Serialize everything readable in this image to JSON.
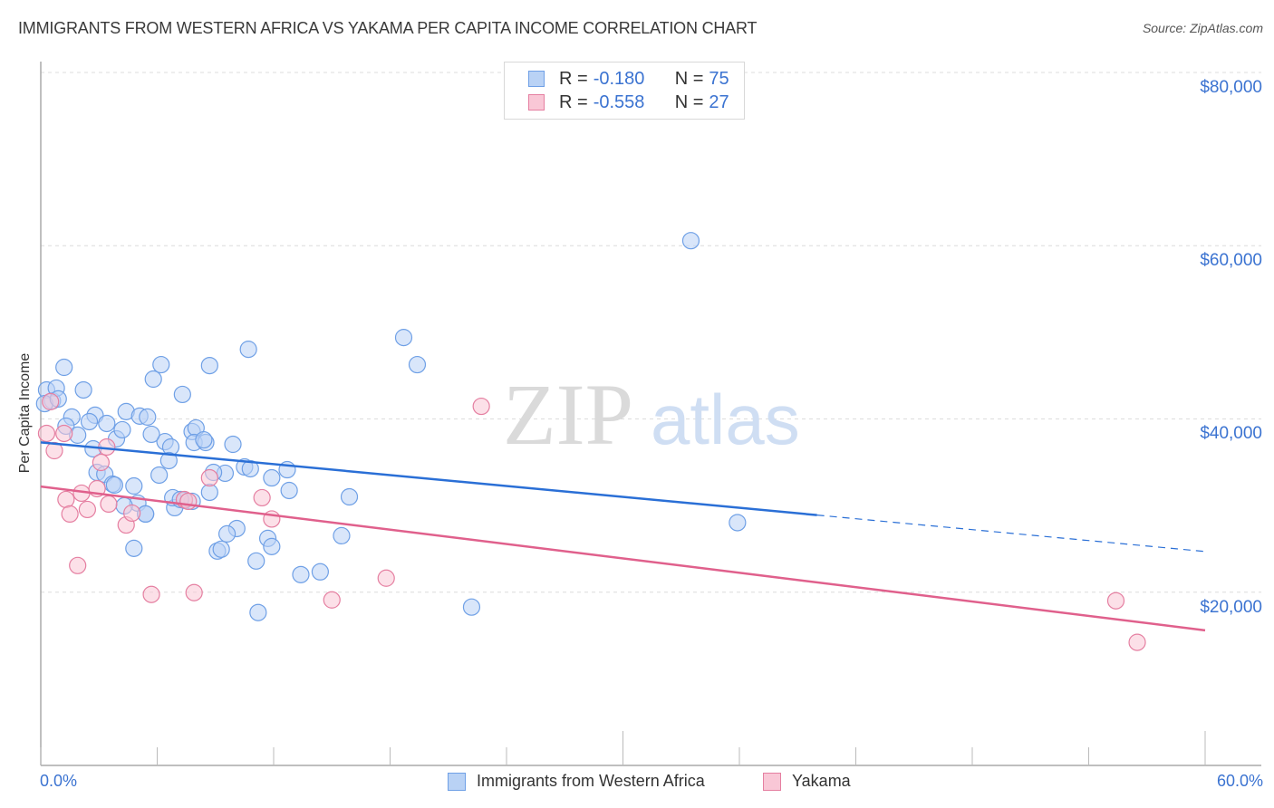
{
  "header": {
    "title": "IMMIGRANTS FROM WESTERN AFRICA VS YAKAMA PER CAPITA INCOME CORRELATION CHART",
    "source": "Source: ZipAtlas.com"
  },
  "watermark": {
    "zip": "ZIP",
    "atlas": "atlas"
  },
  "legend": {
    "series": [
      {
        "r_label": "R =",
        "r_value": "-0.180",
        "n_label": "N =",
        "n_value": "75",
        "color": "#6fa0e6",
        "fill": "#b9d2f5"
      },
      {
        "r_label": "R =",
        "r_value": "-0.558",
        "n_label": "N =",
        "n_value": "27",
        "color": "#e57fa1",
        "fill": "#f9c7d6"
      }
    ]
  },
  "bottom_legend": {
    "items": [
      {
        "label": "Immigrants from Western Africa"
      },
      {
        "label": "Yakama"
      }
    ]
  },
  "axes": {
    "y_label": "Per Capita Income",
    "y_ticks": [
      "$80,000",
      "$60,000",
      "$40,000",
      "$20,000"
    ],
    "x_min_label": "0.0%",
    "x_max_label": "60.0%"
  },
  "chart_data": {
    "type": "scatter",
    "title": "IMMIGRANTS FROM WESTERN AFRICA VS YAKAMA PER CAPITA INCOME CORRELATION CHART",
    "xlabel": "",
    "ylabel": "Per Capita Income",
    "xlim": [
      0,
      60
    ],
    "ylim": [
      0,
      80000
    ],
    "x_tick_labels": [
      "0.0%",
      "60.0%"
    ],
    "y_tick_values": [
      20000,
      40000,
      60000,
      80000
    ],
    "y_tick_labels": [
      "$20,000",
      "$40,000",
      "$60,000",
      "$80,000"
    ],
    "grid": true,
    "legend_position": "top-center and bottom",
    "series": [
      {
        "name": "Immigrants from Western Africa",
        "color": "#6fa0e6",
        "r": -0.18,
        "n": 75,
        "trend": {
          "x0": 0,
          "y0": 37300,
          "x1": 40,
          "y1": 28900,
          "dashed_to_x": 60,
          "dashed_to_y": 24700
        },
        "points": [
          [
            0.3,
            43350
          ],
          [
            0.6,
            42100
          ],
          [
            0.8,
            43560
          ],
          [
            1.2,
            45960
          ],
          [
            0.2,
            41770
          ],
          [
            0.9,
            42310
          ],
          [
            2.2,
            43350
          ],
          [
            1.6,
            40220
          ],
          [
            1.3,
            39170
          ],
          [
            2.8,
            40430
          ],
          [
            2.5,
            39690
          ],
          [
            1.9,
            38130
          ],
          [
            3.4,
            39480
          ],
          [
            2.7,
            36550
          ],
          [
            3.9,
            37700
          ],
          [
            4.2,
            38750
          ],
          [
            4.4,
            40850
          ],
          [
            5.1,
            40330
          ],
          [
            5.5,
            40220
          ],
          [
            2.9,
            33830
          ],
          [
            3.3,
            33620
          ],
          [
            3.7,
            32470
          ],
          [
            4.8,
            32260
          ],
          [
            6.1,
            33520
          ],
          [
            6.4,
            37380
          ],
          [
            6.7,
            36760
          ],
          [
            5.7,
            38230
          ],
          [
            5.8,
            44600
          ],
          [
            6.2,
            46270
          ],
          [
            7.3,
            42830
          ],
          [
            8.7,
            46160
          ],
          [
            10.7,
            48040
          ],
          [
            18.7,
            49400
          ],
          [
            19.4,
            46270
          ],
          [
            7.8,
            38540
          ],
          [
            8.0,
            38960
          ],
          [
            7.9,
            37280
          ],
          [
            8.5,
            37280
          ],
          [
            8.4,
            37590
          ],
          [
            9.9,
            37070
          ],
          [
            9.5,
            33730
          ],
          [
            8.9,
            33830
          ],
          [
            6.6,
            35190
          ],
          [
            7.8,
            30490
          ],
          [
            7.4,
            30600
          ],
          [
            8.7,
            31530
          ],
          [
            11.9,
            33200
          ],
          [
            12.7,
            34140
          ],
          [
            12.8,
            31740
          ],
          [
            15.9,
            31010
          ],
          [
            5.0,
            30280
          ],
          [
            5.4,
            29030
          ],
          [
            6.9,
            29760
          ],
          [
            4.8,
            25060
          ],
          [
            10.1,
            27350
          ],
          [
            9.6,
            26730
          ],
          [
            9.1,
            24750
          ],
          [
            9.3,
            24960
          ],
          [
            11.7,
            26210
          ],
          [
            11.9,
            25270
          ],
          [
            15.5,
            26520
          ],
          [
            13.4,
            22030
          ],
          [
            14.4,
            22350
          ],
          [
            11.1,
            23600
          ],
          [
            11.2,
            17650
          ],
          [
            22.2,
            18280
          ],
          [
            33.5,
            60580
          ],
          [
            35.9,
            28030
          ],
          [
            10.5,
            34460
          ],
          [
            10.8,
            34250
          ],
          [
            6.8,
            30910
          ],
          [
            7.2,
            30700
          ],
          [
            5.4,
            29030
          ],
          [
            4.3,
            29970
          ],
          [
            3.8,
            32370
          ]
        ]
      },
      {
        "name": "Yakama",
        "color": "#e57fa1",
        "r": -0.558,
        "n": 27,
        "trend": {
          "x0": 0,
          "y0": 32200,
          "x1": 60,
          "y1": 15600
        },
        "points": [
          [
            0.3,
            38330
          ],
          [
            0.5,
            42000
          ],
          [
            1.2,
            38330
          ],
          [
            0.7,
            36340
          ],
          [
            1.3,
            30700
          ],
          [
            1.5,
            29030
          ],
          [
            2.1,
            31430
          ],
          [
            2.4,
            29550
          ],
          [
            1.9,
            23080
          ],
          [
            2.9,
            31950
          ],
          [
            3.5,
            30180
          ],
          [
            3.1,
            34980
          ],
          [
            4.4,
            27760
          ],
          [
            4.7,
            29130
          ],
          [
            5.7,
            19740
          ],
          [
            7.9,
            19950
          ],
          [
            7.4,
            30700
          ],
          [
            7.6,
            30490
          ],
          [
            8.7,
            33200
          ],
          [
            11.4,
            30910
          ],
          [
            11.9,
            28450
          ],
          [
            15.0,
            19110
          ],
          [
            17.8,
            21620
          ],
          [
            22.7,
            41460
          ],
          [
            55.4,
            19010
          ],
          [
            56.5,
            14210
          ],
          [
            3.4,
            36760
          ]
        ]
      }
    ]
  }
}
